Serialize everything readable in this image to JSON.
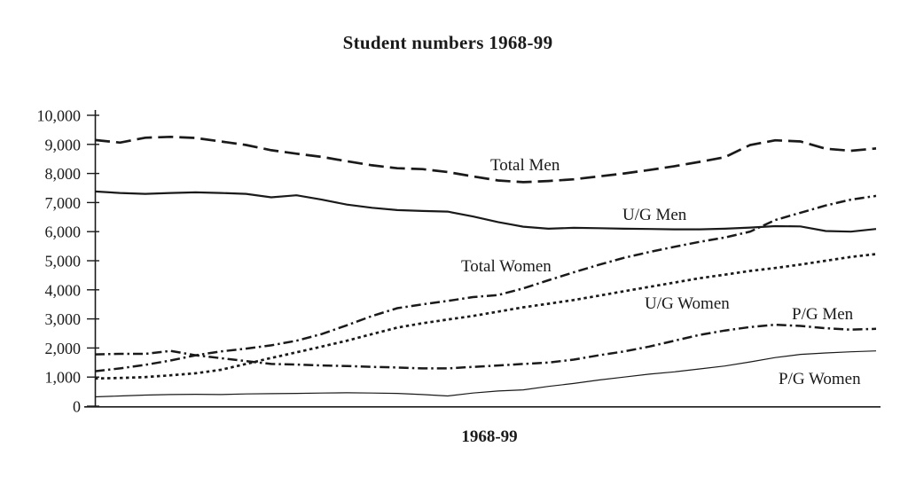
{
  "title": "Student numbers 1968-99",
  "x_axis_label": "1968-99",
  "colors": {
    "ink": "#1a1a1a",
    "background": "#ffffff"
  },
  "chart_data": {
    "type": "line",
    "title": "Student numbers 1968-99",
    "xlabel": "1968-99",
    "ylabel": "",
    "x_start_year": 1968,
    "x_end_year": 1999,
    "ylim": [
      0,
      10000
    ],
    "grid": false,
    "legend_position": "inline-labels-on-plot",
    "ytick_values": [
      0,
      1000,
      2000,
      3000,
      4000,
      5000,
      6000,
      7000,
      8000,
      9000,
      10000
    ],
    "ytick_labels": [
      "0",
      "1,000",
      "2,000",
      "3,000",
      "4,000",
      "5,000",
      "6,000",
      "7,000",
      "8,000",
      "9,000",
      "10,000"
    ],
    "series": [
      {
        "name": "Total Men",
        "line_style": "dashed",
        "values": [
          9150,
          9060,
          9230,
          9260,
          9220,
          9100,
          8980,
          8800,
          8680,
          8570,
          8420,
          8280,
          8180,
          8150,
          8050,
          7900,
          7760,
          7700,
          7740,
          7800,
          7900,
          8000,
          8120,
          8250,
          8400,
          8560,
          8980,
          9140,
          9100,
          8850,
          8780,
          8860
        ]
      },
      {
        "name": "U/G Men",
        "line_style": "solid",
        "values": [
          7380,
          7330,
          7300,
          7330,
          7350,
          7330,
          7300,
          7180,
          7250,
          7100,
          6930,
          6820,
          6740,
          6710,
          6690,
          6520,
          6330,
          6170,
          6100,
          6130,
          6120,
          6100,
          6090,
          6080,
          6080,
          6100,
          6140,
          6190,
          6180,
          6020,
          6000,
          6090
        ]
      },
      {
        "name": "Total Women",
        "line_style": "dash-dot",
        "values": [
          1200,
          1300,
          1420,
          1570,
          1750,
          1880,
          1980,
          2090,
          2250,
          2480,
          2780,
          3100,
          3370,
          3500,
          3620,
          3750,
          3820,
          4050,
          4330,
          4600,
          4860,
          5100,
          5300,
          5480,
          5650,
          5800,
          6000,
          6400,
          6650,
          6900,
          7100,
          7230
        ]
      },
      {
        "name": "U/G Women",
        "line_style": "dotted",
        "values": [
          950,
          970,
          1000,
          1060,
          1130,
          1250,
          1450,
          1660,
          1850,
          2050,
          2250,
          2480,
          2700,
          2850,
          2980,
          3100,
          3250,
          3400,
          3520,
          3650,
          3800,
          3950,
          4100,
          4250,
          4400,
          4520,
          4650,
          4750,
          4870,
          5000,
          5130,
          5230
        ]
      },
      {
        "name": "P/G Men",
        "line_style": "dash-dot",
        "values": [
          1780,
          1800,
          1800,
          1900,
          1750,
          1650,
          1550,
          1450,
          1430,
          1400,
          1380,
          1350,
          1330,
          1300,
          1300,
          1350,
          1400,
          1450,
          1500,
          1600,
          1750,
          1880,
          2050,
          2250,
          2450,
          2600,
          2720,
          2800,
          2760,
          2680,
          2630,
          2660
        ]
      },
      {
        "name": "P/G Women",
        "line_style": "thin-solid",
        "values": [
          320,
          350,
          380,
          400,
          410,
          400,
          420,
          430,
          440,
          450,
          460,
          450,
          440,
          400,
          350,
          450,
          520,
          560,
          680,
          780,
          900,
          1000,
          1100,
          1180,
          1280,
          1380,
          1520,
          1670,
          1780,
          1830,
          1870,
          1900
        ]
      }
    ]
  }
}
